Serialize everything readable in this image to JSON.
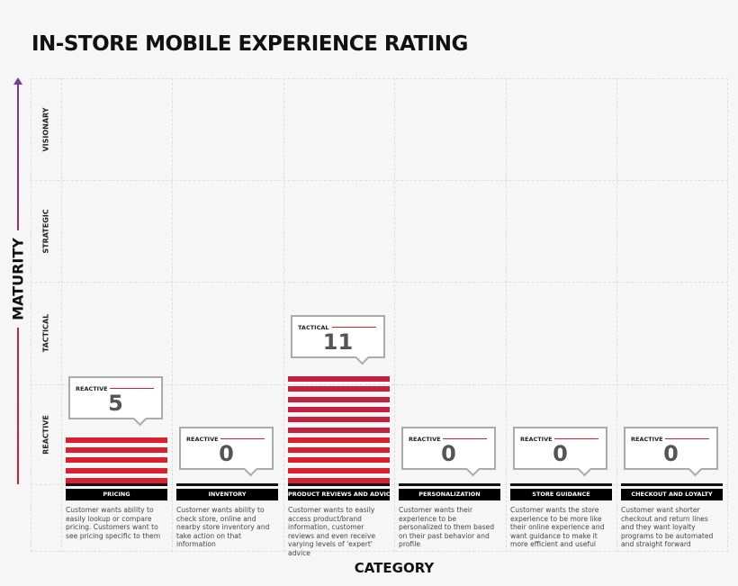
{
  "title": "IN-STORE MOBILE EXPERIENCE RATING",
  "chart_data": {
    "type": "bar",
    "title": "IN-STORE MOBILE EXPERIENCE RATING",
    "xlabel": "CATEGORY",
    "ylabel": "MATURITY",
    "levels": [
      "REACTIVE",
      "TACTICAL",
      "STRATEGIC",
      "VISIONARY"
    ],
    "categories": [
      "PRICING",
      "INVENTORY",
      "PRODUCT REVIEWS AND ADVICE",
      "PERSONALIZATION",
      "STORE GUIDANCE",
      "CHECKOUT AND LOYALTY"
    ],
    "values": [
      5,
      0,
      11,
      0,
      0,
      0
    ],
    "value_levels": [
      "REACTIVE",
      "REACTIVE",
      "TACTICAL",
      "REACTIVE",
      "REACTIVE",
      "REACTIVE"
    ],
    "descriptions": [
      "Customer wants ability to easily lookup or compare pricing. Customers want to see pricing specific to them",
      "Customer wants ability to check store, online and nearby store inventory and take action on that information",
      "Customer wants to easily access product/brand information, customer reviews and even receive varying levels of 'expert' advice",
      "Customer wants their experience to be personalized to them based on their past behavior and profile",
      "Customer wants the store experience to be more like their online experience and want guidance to make it more efficient and useful",
      "Customer want shorter checkout and return lines and they want loyalty programs to be automated and straight forward"
    ],
    "colors": {
      "bar": "#d9202e",
      "axis_top": "#7a3a9a",
      "axis_bottom": "#d32030"
    }
  }
}
